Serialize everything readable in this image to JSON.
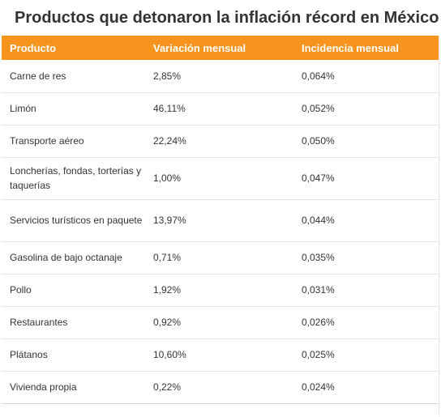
{
  "title": "Productos que detonaron la inflación récord en México",
  "table": {
    "headers": [
      "Producto",
      "Variación mensual",
      "Incidencia mensual"
    ],
    "rows": [
      {
        "producto": "Carne de res",
        "variacion": "2,85%",
        "incidencia": "0,064%"
      },
      {
        "producto": "Limón",
        "variacion": "46,11%",
        "incidencia": "0,052%"
      },
      {
        "producto": "Transporte aéreo",
        "variacion": "22,24%",
        "incidencia": "0,050%"
      },
      {
        "producto": "Loncherías, fondas, torterías y taquerías",
        "variacion": "1,00%",
        "incidencia": "0,047%"
      },
      {
        "producto": "Servicios turísticos en paquete",
        "variacion": "13,97%",
        "incidencia": "0,044%"
      },
      {
        "producto": "Gasolina de bajo octanaje",
        "variacion": "0,71%",
        "incidencia": "0,035%"
      },
      {
        "producto": "Pollo",
        "variacion": "1,92%",
        "incidencia": "0,031%"
      },
      {
        "producto": "Restaurantes",
        "variacion": "0,92%",
        "incidencia": "0,026%"
      },
      {
        "producto": "Plátanos",
        "variacion": "10,60%",
        "incidencia": "0,025%"
      },
      {
        "producto": "Vivienda propia",
        "variacion": "0,22%",
        "incidencia": "0,024%"
      }
    ]
  },
  "colors": {
    "header_background": "#f7941d",
    "header_text": "#ffffff",
    "body_text": "#333333",
    "row_divider": "#e2e2e2"
  }
}
